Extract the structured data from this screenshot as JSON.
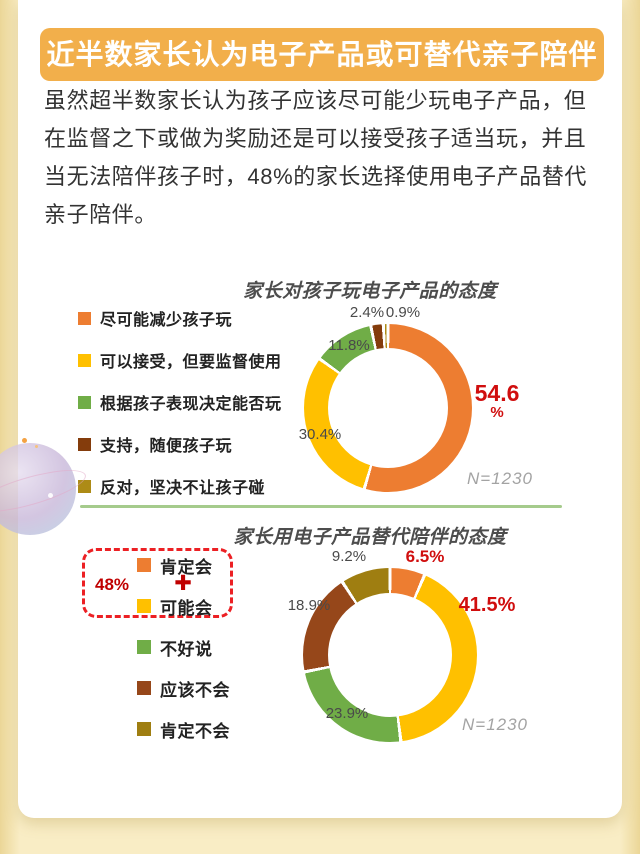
{
  "page": {
    "background": "#F8EBC0",
    "card_color": "#FFFFFF"
  },
  "banner": {
    "text": "近半数家长认为电子产品或可替代亲子陪伴",
    "background": "#F2AF4B",
    "text_color": "#FFFFFF"
  },
  "intro_paragraph": {
    "text": "虽然超半数家长认为孩子应该尽可能少玩电子产品，但在监督之下或做为奖励还是可以接受孩子适当玩，并且当无法陪伴孩子时，48%的家长选择使用电子产品替代亲子陪伴。"
  },
  "divider": {
    "color": "#A5CB8C"
  },
  "decoration": {
    "name": "planet-sticker"
  },
  "chart_data": [
    {
      "type": "pie",
      "subtype": "donut",
      "title": "家长对孩子玩电子产品的态度",
      "legend_position": "left",
      "sample_label": "N=1230",
      "emphasis_color": "#D00E0E",
      "segments": [
        {
          "label": "尽可能减少孩子玩",
          "value": 54.6,
          "value_label": "54.6",
          "value_label_unit": "%",
          "color": "#ED7D31",
          "emphasized": true
        },
        {
          "label": "可以接受，但要监督使用",
          "value": 30.4,
          "value_label": "30.4%",
          "color": "#FFC000"
        },
        {
          "label": "根据孩子表现决定能否玩",
          "value": 11.8,
          "value_label": "11.8%",
          "color": "#70AD47"
        },
        {
          "label": "支持，随便孩子玩",
          "value": 2.4,
          "value_label": "2.4%",
          "color": "#843C0C"
        },
        {
          "label": "反对，坚决不让孩子碰",
          "value": 0.9,
          "value_label": "0.9%",
          "color": "#AD8B16"
        }
      ]
    },
    {
      "type": "pie",
      "subtype": "donut",
      "title": "家长用电子产品替代陪伴的态度",
      "legend_position": "left",
      "sample_label": "N=1230",
      "emphasis_color": "#D00E0E",
      "annotation": {
        "combined_label": "48%",
        "plus_sign": "✚",
        "box_color": "#EC2024",
        "covers": [
          "肯定会",
          "可能会"
        ]
      },
      "segments": [
        {
          "label": "肯定会",
          "value": 6.5,
          "value_label": "6.5%",
          "color": "#ED7D31",
          "emphasized": true
        },
        {
          "label": "可能会",
          "value": 41.5,
          "value_label": "41.5%",
          "color": "#FFC000",
          "emphasized": true
        },
        {
          "label": "不好说",
          "value": 23.9,
          "value_label": "23.9%",
          "color": "#70AD47"
        },
        {
          "label": "应该不会",
          "value": 18.9,
          "value_label": "18.9%",
          "color": "#96471A"
        },
        {
          "label": "肯定不会",
          "value": 9.2,
          "value_label": "9.2%",
          "color": "#9F7E11"
        }
      ]
    }
  ]
}
